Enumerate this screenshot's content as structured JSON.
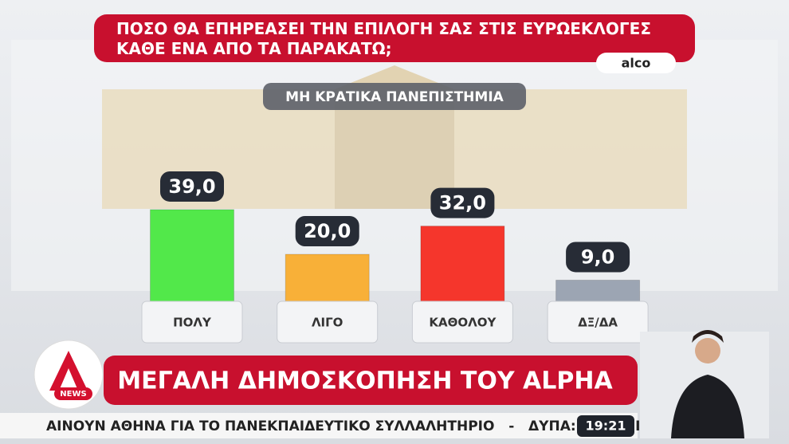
{
  "chart_data": {
    "type": "bar",
    "title": "ΠΟΣΟ ΘΑ ΕΠΗΡΕΑΣΕΙ ΤΗΝ ΕΠΙΛΟΓΗ ΣΑΣ ΣΤΙΣ ΕΥΡΩΕΚΛΟΓΕΣ ΚΑΘΕ ΕΝΑ ΑΠΟ ΤΑ ΠΑΡΑΚΑΤΩ;",
    "source": "alco",
    "subtitle": "ΜΗ ΚΡΑΤΙΚΑ ΠΑΝΕΠΙΣΤΗΜΙΑ",
    "categories": [
      "ΠΟΛΥ",
      "ΛΙΓΟ",
      "ΚΑΘΟΛΟΥ",
      "ΔΞ/ΔΑ"
    ],
    "values": [
      39,
      20,
      32,
      9
    ],
    "value_labels": [
      "39,0",
      "20,0",
      "32,0",
      "9,0"
    ],
    "colors": [
      "#52e84a",
      "#f8b038",
      "#f5362c",
      "#9ca5b3"
    ]
  },
  "broadcast": {
    "banner": "ΜΕΓΑΛΗ ΔΗΜΟΣΚΟΠΗΣΗ ΤΟΥ ALPHA",
    "logo_text": "NEWS",
    "ticker": "ΑΙΝΟΥΝ ΑΘΗΝΑ ΓΙΑ ΤΟ ΠΑΝΕΚΠΑΙΔΕΥΤΙΚΟ ΣΥΛΛΑΛΗΤΗΡΙΟ   -   ΔΥΠΑ: ΑΙΤΗΣΕΙΣ Γ",
    "time": "19:21"
  }
}
